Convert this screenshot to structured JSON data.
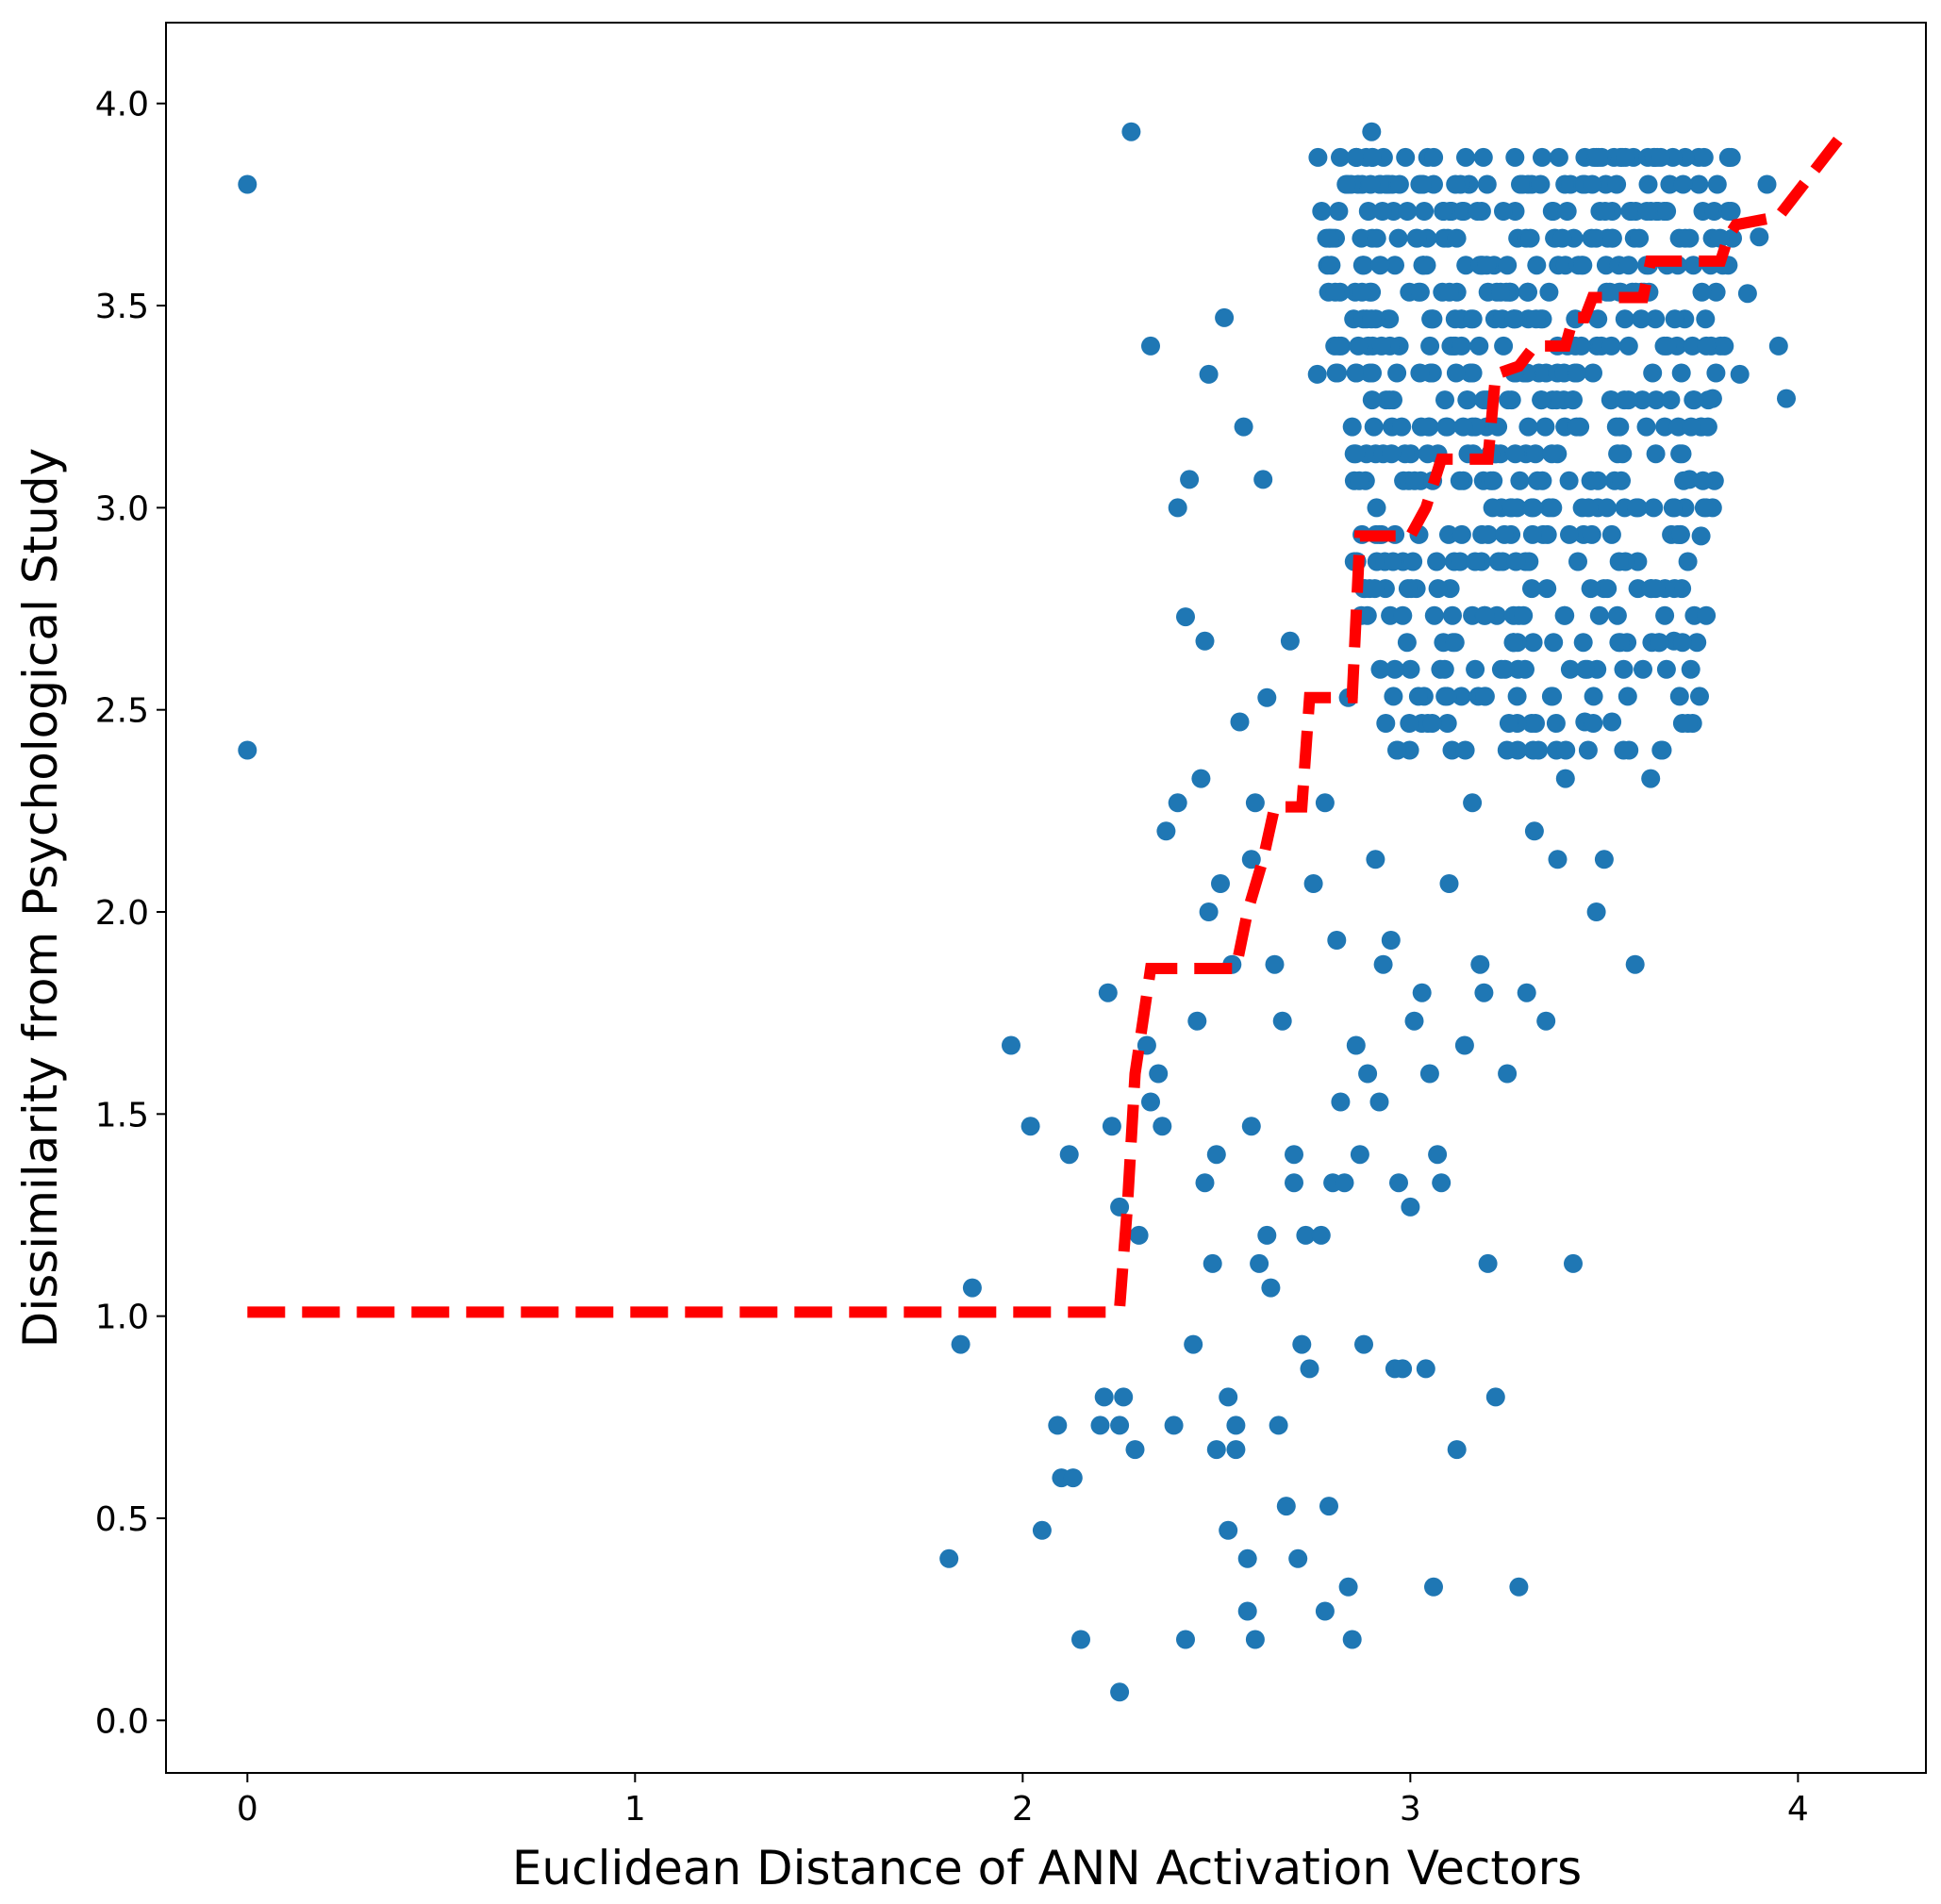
{
  "chart_data": {
    "type": "scatter",
    "title": "",
    "xlabel": "Euclidean Distance of ANN Activation Vectors",
    "ylabel": "Dissimilarity from Psychological Study",
    "xlim": [
      -0.21,
      4.33
    ],
    "ylim": [
      -0.13,
      4.2
    ],
    "x_ticks": [
      0,
      1,
      2,
      3,
      4
    ],
    "y_ticks": [
      0.0,
      0.5,
      1.0,
      1.5,
      2.0,
      2.5,
      3.0,
      3.5,
      4.0
    ],
    "x_tick_labels": [
      "0",
      "1",
      "2",
      "3",
      "4"
    ],
    "y_tick_labels": [
      "0.0",
      "0.5",
      "1.0",
      "1.5",
      "2.0",
      "2.5",
      "3.0",
      "3.5",
      "4.0"
    ],
    "grid": false,
    "legend": "none",
    "colors": {
      "points": "#1f77b4",
      "fit_line": "#ff0000"
    },
    "series": [
      {
        "kind": "scatter",
        "x": [
          0,
          0,
          1.81,
          1.84,
          1.87,
          1.97,
          2.02,
          2.05,
          2.09,
          2.1,
          2.12,
          2.13,
          2.15,
          2.2,
          2.21,
          2.22,
          2.23,
          2.25,
          2.25,
          2.25,
          2.26,
          2.28,
          2.29,
          2.3,
          2.32,
          2.33,
          2.33,
          2.35,
          2.36,
          2.37,
          2.39,
          2.4,
          2.4,
          2.42,
          2.42,
          2.43,
          2.44,
          2.45,
          2.46,
          2.47,
          2.47,
          2.48,
          2.48,
          2.49,
          2.5,
          2.5,
          2.51,
          2.52,
          2.53,
          2.53,
          2.54,
          2.55,
          2.55,
          2.56,
          2.57,
          2.58,
          2.58,
          2.59,
          2.59,
          2.6,
          2.6,
          2.61,
          2.62,
          2.63,
          2.63,
          2.64,
          2.65,
          2.66,
          2.67,
          2.68,
          2.69,
          2.7,
          2.7,
          2.71,
          2.72,
          2.73,
          2.74,
          2.75,
          2.76,
          2.77,
          2.78,
          2.78,
          2.79,
          2.8,
          2.81,
          2.82,
          2.83,
          2.84,
          2.84,
          2.85,
          2.86,
          2.87,
          2.88,
          2.89,
          2.9,
          2.91,
          2.92,
          2.93,
          2.95,
          2.96,
          2.97,
          2.98,
          3.0,
          3.01,
          3.03,
          3.04,
          3.05,
          3.06,
          3.07,
          3.08,
          3.1,
          3.12,
          3.14,
          3.16,
          3.18,
          3.19,
          3.2,
          3.22,
          3.25,
          3.28,
          3.3,
          3.32,
          3.35,
          3.38,
          3.4,
          3.42,
          3.45,
          3.48,
          3.5,
          3.52,
          3.55,
          3.58,
          3.6,
          3.62,
          3.65,
          3.68,
          3.7,
          3.72,
          3.75,
          3.78,
          3.8,
          3.82,
          3.85,
          3.87,
          3.9,
          3.92,
          3.95,
          3.97
        ],
        "y": [
          3.8,
          2.4,
          0.4,
          0.93,
          1.07,
          1.67,
          1.47,
          0.47,
          0.73,
          0.6,
          1.4,
          0.6,
          0.2,
          0.73,
          0.8,
          1.8,
          1.47,
          0.07,
          0.73,
          1.27,
          0.8,
          3.93,
          0.67,
          1.2,
          1.67,
          3.4,
          1.53,
          1.6,
          1.47,
          2.2,
          0.73,
          2.27,
          3.0,
          0.2,
          2.73,
          3.07,
          0.93,
          1.73,
          2.33,
          1.33,
          2.67,
          2.0,
          3.33,
          1.13,
          0.67,
          1.4,
          2.07,
          3.47,
          0.47,
          0.8,
          1.87,
          0.67,
          0.73,
          2.47,
          3.2,
          0.27,
          0.4,
          2.13,
          1.47,
          0.2,
          2.27,
          1.13,
          3.07,
          1.2,
          2.53,
          1.07,
          1.87,
          0.73,
          1.73,
          0.53,
          2.67,
          1.33,
          1.4,
          0.4,
          0.93,
          1.2,
          0.87,
          2.07,
          3.33,
          1.2,
          0.27,
          2.27,
          0.53,
          1.33,
          1.93,
          1.53,
          1.33,
          2.53,
          0.33,
          0.2,
          1.67,
          1.4,
          0.93,
          1.6,
          3.93,
          2.13,
          1.53,
          1.87,
          1.93,
          0.87,
          1.33,
          0.87,
          1.27,
          1.73,
          1.8,
          0.87,
          1.6,
          0.33,
          1.4,
          1.33,
          2.07,
          0.67,
          1.67,
          2.27,
          1.87,
          1.8,
          1.13,
          0.8,
          1.6,
          0.33,
          1.8,
          2.2,
          1.73,
          2.13,
          2.33,
          1.13,
          2.47,
          2.0,
          2.13,
          2.47,
          2.4,
          1.87,
          2.6,
          2.33,
          2.4,
          2.67,
          2.8,
          3.07,
          2.93,
          3.27,
          3.4,
          3.6,
          3.33,
          3.53,
          3.67,
          3.8,
          3.4,
          3.27
        ],
        "dense_region": {
          "x_range": [
            2.75,
            3.75
          ],
          "y_range": [
            2.4,
            3.93
          ],
          "y_step": 0.0667
        }
      },
      {
        "kind": "line",
        "style": "dashed",
        "name": "",
        "x": [
          0,
          2.23,
          2.25,
          2.27,
          2.29,
          2.31,
          2.33,
          2.55,
          2.58,
          2.62,
          2.65,
          2.72,
          2.74,
          2.85,
          2.87,
          3.0,
          3.04,
          3.08,
          3.2,
          3.22,
          3.28,
          3.32,
          3.4,
          3.42,
          3.45,
          3.47,
          3.6,
          3.62,
          3.8,
          3.82,
          3.84,
          3.95,
          4.12
        ],
        "y": [
          1.01,
          1.01,
          1.02,
          1.27,
          1.6,
          1.73,
          1.86,
          1.86,
          2.0,
          2.13,
          2.26,
          2.26,
          2.53,
          2.53,
          2.93,
          2.93,
          3.0,
          3.12,
          3.12,
          3.33,
          3.35,
          3.4,
          3.4,
          3.47,
          3.47,
          3.52,
          3.52,
          3.61,
          3.61,
          3.67,
          3.7,
          3.72,
          3.93
        ]
      }
    ]
  }
}
